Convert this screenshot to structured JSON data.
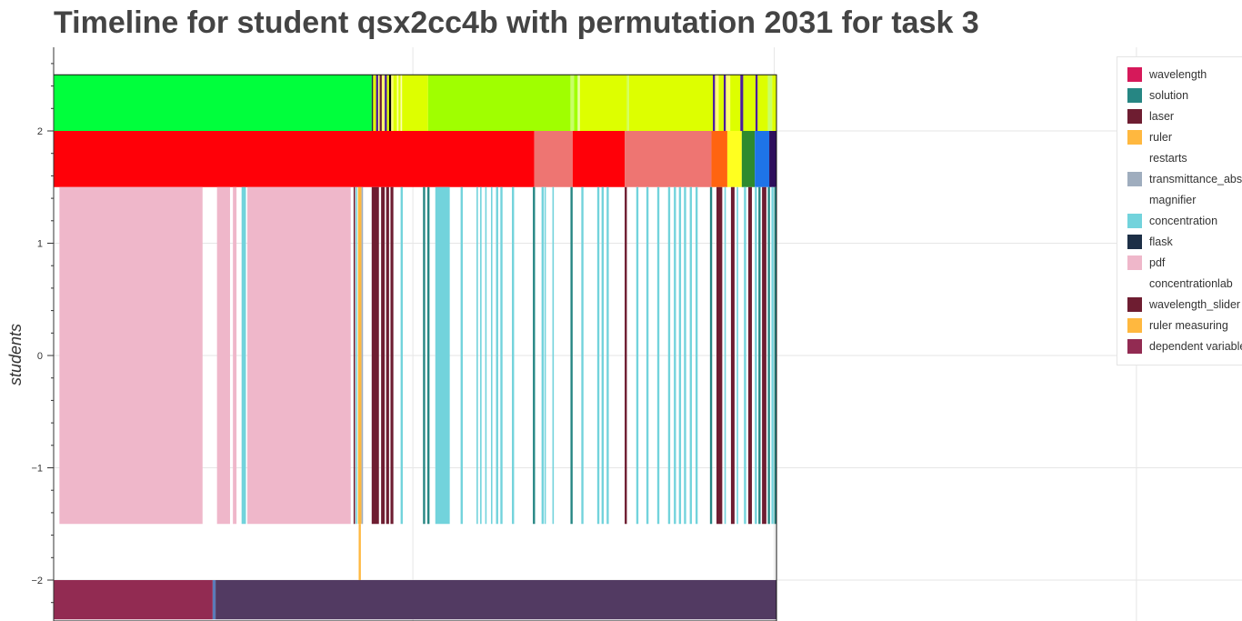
{
  "chart_data": {
    "type": "timeline",
    "title": "Timeline for student qsx2cc4b with permutation 2031 for task 3",
    "ylabel": "students",
    "xlabel": "",
    "x_range": [
      0,
      1
    ],
    "ylim": [
      -2.35,
      2.75
    ],
    "y_ticks": [
      2,
      1,
      0,
      -1,
      -2
    ],
    "y_tick_labels": [
      "2",
      "1",
      "0",
      "−1",
      "−2"
    ],
    "x_gridlines": [
      0.497,
      0.997,
      1.498,
      1.998
    ],
    "legend": {
      "position": "top-right",
      "entries": [
        {
          "label": "wavelength",
          "color": "#d6195a"
        },
        {
          "label": "solution",
          "color": "#268683"
        },
        {
          "label": "laser",
          "color": "#6e1d31"
        },
        {
          "label": "ruler",
          "color": "#ffb83f"
        },
        {
          "label": "restarts",
          "color": ""
        },
        {
          "label": "transmittance_absorbance",
          "color": "#9fadbe"
        },
        {
          "label": "magnifier",
          "color": ""
        },
        {
          "label": "concentration",
          "color": "#72d3dc"
        },
        {
          "label": "flask",
          "color": "#1d2f46"
        },
        {
          "label": "pdf",
          "color": "#efb7ca"
        },
        {
          "label": "concentrationlab",
          "color": ""
        },
        {
          "label": "wavelength_slider",
          "color": "#6e1d31"
        },
        {
          "label": "ruler measuring",
          "color": "#ffb83f"
        },
        {
          "label": "dependent variable",
          "color": "#922b52"
        }
      ]
    },
    "rows": [
      {
        "y_range": [
          2.0,
          2.5
        ],
        "segments": [
          {
            "start": 0.0,
            "end": 0.44,
            "color": "#00ff3c"
          },
          {
            "start": 0.44,
            "end": 0.442,
            "color": "#1d2f46"
          },
          {
            "start": 0.442,
            "end": 0.446,
            "color": "#ddff00"
          },
          {
            "start": 0.446,
            "end": 0.449,
            "color": "#4b1b9c"
          },
          {
            "start": 0.449,
            "end": 0.451,
            "color": "#ffff73"
          },
          {
            "start": 0.451,
            "end": 0.454,
            "color": "#6e1d31"
          },
          {
            "start": 0.454,
            "end": 0.458,
            "color": "#f7ff6e"
          },
          {
            "start": 0.458,
            "end": 0.461,
            "color": "#4b1b9c"
          },
          {
            "start": 0.461,
            "end": 0.464,
            "color": "#ddff00"
          },
          {
            "start": 0.464,
            "end": 0.467,
            "color": "#000000"
          },
          {
            "start": 0.467,
            "end": 0.47,
            "color": "#ffff73"
          },
          {
            "start": 0.47,
            "end": 0.475,
            "color": "#ddff00"
          },
          {
            "start": 0.475,
            "end": 0.477,
            "color": "#ffffa0"
          },
          {
            "start": 0.477,
            "end": 0.48,
            "color": "#ddff00"
          },
          {
            "start": 0.48,
            "end": 0.482,
            "color": "#fdffb0"
          },
          {
            "start": 0.482,
            "end": 0.518,
            "color": "#ddff00"
          },
          {
            "start": 0.518,
            "end": 0.715,
            "color": "#a0ff00"
          },
          {
            "start": 0.715,
            "end": 0.72,
            "color": "#c7ff66"
          },
          {
            "start": 0.72,
            "end": 0.725,
            "color": "#a0ff00"
          },
          {
            "start": 0.725,
            "end": 0.728,
            "color": "#e7ff9e"
          },
          {
            "start": 0.728,
            "end": 0.793,
            "color": "#ddff00"
          },
          {
            "start": 0.793,
            "end": 0.796,
            "color": "#d0ff5c"
          },
          {
            "start": 0.796,
            "end": 0.912,
            "color": "#ddff00"
          },
          {
            "start": 0.912,
            "end": 0.915,
            "color": "#4b1b9c"
          },
          {
            "start": 0.915,
            "end": 0.92,
            "color": "#ffff73"
          },
          {
            "start": 0.92,
            "end": 0.927,
            "color": "#ddff00"
          },
          {
            "start": 0.927,
            "end": 0.93,
            "color": "#4b1b9c"
          },
          {
            "start": 0.93,
            "end": 0.936,
            "color": "#ffff73"
          },
          {
            "start": 0.936,
            "end": 0.95,
            "color": "#ddff00"
          },
          {
            "start": 0.95,
            "end": 0.954,
            "color": "#4b1b9c"
          },
          {
            "start": 0.954,
            "end": 0.971,
            "color": "#ddff00"
          },
          {
            "start": 0.971,
            "end": 0.974,
            "color": "#4b1b9c"
          },
          {
            "start": 0.974,
            "end": 0.988,
            "color": "#ddff00"
          },
          {
            "start": 0.988,
            "end": 0.994,
            "color": "#c7ff66"
          },
          {
            "start": 0.994,
            "end": 1.0,
            "color": "#ddff00"
          }
        ]
      },
      {
        "y_range": [
          1.5,
          2.0
        ],
        "segments": [
          {
            "start": 0.0,
            "end": 0.665,
            "color": "#ff0008"
          },
          {
            "start": 0.665,
            "end": 0.718,
            "color": "#ee7572"
          },
          {
            "start": 0.718,
            "end": 0.79,
            "color": "#ff0008"
          },
          {
            "start": 0.79,
            "end": 0.91,
            "color": "#ee7572"
          },
          {
            "start": 0.91,
            "end": 0.932,
            "color": "#ff6410"
          },
          {
            "start": 0.932,
            "end": 0.952,
            "color": "#ffff20"
          },
          {
            "start": 0.952,
            "end": 0.97,
            "color": "#2e8a2e"
          },
          {
            "start": 0.97,
            "end": 0.99,
            "color": "#1e74e8"
          },
          {
            "start": 0.99,
            "end": 1.0,
            "color": "#2e0f5c"
          }
        ]
      },
      {
        "y_range": [
          -1.5,
          1.5
        ],
        "segments": [
          {
            "start": 0.008,
            "end": 0.206,
            "color": "#efb7ca"
          },
          {
            "start": 0.226,
            "end": 0.244,
            "color": "#efb7ca"
          },
          {
            "start": 0.248,
            "end": 0.253,
            "color": "#efb7ca"
          },
          {
            "start": 0.26,
            "end": 0.266,
            "color": "#72d3dc"
          },
          {
            "start": 0.268,
            "end": 0.411,
            "color": "#efb7ca"
          },
          {
            "start": 0.415,
            "end": 0.417,
            "color": "#6e1d31"
          },
          {
            "start": 0.418,
            "end": 0.42,
            "color": "#72d3dc"
          },
          {
            "start": 0.421,
            "end": 0.426,
            "color": "#ffb83f"
          },
          {
            "start": 0.426,
            "end": 0.428,
            "color": "#9fadbe"
          },
          {
            "start": 0.44,
            "end": 0.45,
            "color": "#6e1d31"
          },
          {
            "start": 0.453,
            "end": 0.458,
            "color": "#6e1d31"
          },
          {
            "start": 0.46,
            "end": 0.464,
            "color": "#6e1d31"
          },
          {
            "start": 0.466,
            "end": 0.47,
            "color": "#6e1d31"
          },
          {
            "start": 0.48,
            "end": 0.483,
            "color": "#72d3dc"
          },
          {
            "start": 0.511,
            "end": 0.514,
            "color": "#268683"
          },
          {
            "start": 0.517,
            "end": 0.52,
            "color": "#268683"
          },
          {
            "start": 0.528,
            "end": 0.548,
            "color": "#72d3dc"
          },
          {
            "start": 0.563,
            "end": 0.566,
            "color": "#72d3dc"
          },
          {
            "start": 0.585,
            "end": 0.587,
            "color": "#72d3dc"
          },
          {
            "start": 0.59,
            "end": 0.592,
            "color": "#72d3dc"
          },
          {
            "start": 0.597,
            "end": 0.599,
            "color": "#72d3dc"
          },
          {
            "start": 0.605,
            "end": 0.607,
            "color": "#72d3dc"
          },
          {
            "start": 0.612,
            "end": 0.615,
            "color": "#72d3dc"
          },
          {
            "start": 0.618,
            "end": 0.621,
            "color": "#72d3dc"
          },
          {
            "start": 0.634,
            "end": 0.637,
            "color": "#72d3dc"
          },
          {
            "start": 0.663,
            "end": 0.666,
            "color": "#268683"
          },
          {
            "start": 0.675,
            "end": 0.678,
            "color": "#72d3dc"
          },
          {
            "start": 0.679,
            "end": 0.681,
            "color": "#72d3dc"
          },
          {
            "start": 0.69,
            "end": 0.692,
            "color": "#72d3dc"
          },
          {
            "start": 0.715,
            "end": 0.718,
            "color": "#268683"
          },
          {
            "start": 0.73,
            "end": 0.733,
            "color": "#72d3dc"
          },
          {
            "start": 0.752,
            "end": 0.755,
            "color": "#72d3dc"
          },
          {
            "start": 0.758,
            "end": 0.761,
            "color": "#72d3dc"
          },
          {
            "start": 0.765,
            "end": 0.768,
            "color": "#72d3dc"
          },
          {
            "start": 0.79,
            "end": 0.793,
            "color": "#6e1d31"
          },
          {
            "start": 0.806,
            "end": 0.809,
            "color": "#72d3dc"
          },
          {
            "start": 0.82,
            "end": 0.823,
            "color": "#72d3dc"
          },
          {
            "start": 0.835,
            "end": 0.838,
            "color": "#72d3dc"
          },
          {
            "start": 0.85,
            "end": 0.853,
            "color": "#72d3dc"
          },
          {
            "start": 0.858,
            "end": 0.861,
            "color": "#72d3dc"
          },
          {
            "start": 0.865,
            "end": 0.868,
            "color": "#72d3dc"
          },
          {
            "start": 0.872,
            "end": 0.875,
            "color": "#72d3dc"
          },
          {
            "start": 0.88,
            "end": 0.883,
            "color": "#72d3dc"
          },
          {
            "start": 0.888,
            "end": 0.891,
            "color": "#72d3dc"
          },
          {
            "start": 0.908,
            "end": 0.911,
            "color": "#268683"
          },
          {
            "start": 0.917,
            "end": 0.925,
            "color": "#6e1d31"
          },
          {
            "start": 0.928,
            "end": 0.93,
            "color": "#72d3dc"
          },
          {
            "start": 0.937,
            "end": 0.942,
            "color": "#6e1d31"
          },
          {
            "start": 0.945,
            "end": 0.947,
            "color": "#72d3dc"
          },
          {
            "start": 0.955,
            "end": 0.958,
            "color": "#72d3dc"
          },
          {
            "start": 0.961,
            "end": 0.966,
            "color": "#6e1d31"
          },
          {
            "start": 0.97,
            "end": 0.973,
            "color": "#72d3dc"
          },
          {
            "start": 0.975,
            "end": 0.978,
            "color": "#268683"
          },
          {
            "start": 0.98,
            "end": 0.986,
            "color": "#6e1d31"
          },
          {
            "start": 0.988,
            "end": 0.991,
            "color": "#268683"
          },
          {
            "start": 0.993,
            "end": 0.996,
            "color": "#72d3dc"
          },
          {
            "start": 0.997,
            "end": 1.0,
            "color": "#268683"
          }
        ]
      },
      {
        "y_range": [
          -2.0,
          -1.5
        ],
        "segments": [
          {
            "start": 0.422,
            "end": 0.425,
            "color": "#ffb83f"
          }
        ]
      },
      {
        "y_range": [
          -2.35,
          -2.0
        ],
        "segments": [
          {
            "start": 0.0,
            "end": 0.22,
            "color": "#922b52"
          },
          {
            "start": 0.22,
            "end": 0.224,
            "color": "#5b7bb8"
          },
          {
            "start": 0.224,
            "end": 1.0,
            "color": "#523a62"
          }
        ]
      }
    ]
  }
}
